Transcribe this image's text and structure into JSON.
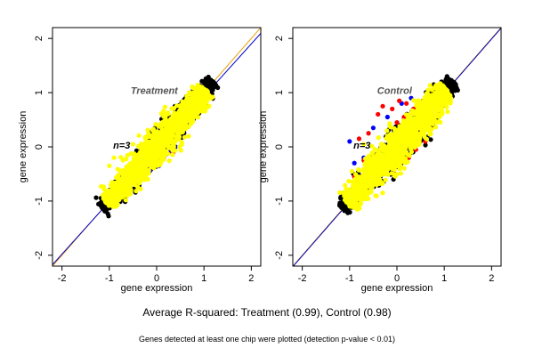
{
  "chart_data": [
    {
      "type": "scatter",
      "panel_title": "Treatment",
      "annotation": "n=3",
      "xlabel": "gene expression",
      "ylabel": "gene expression",
      "xlim": [
        -2.2,
        2.2
      ],
      "ylim": [
        -2.2,
        2.2
      ],
      "xticks": [
        -2,
        -1,
        0,
        1,
        2
      ],
      "yticks": [
        -2,
        -1,
        0,
        1,
        2
      ],
      "reference_lines": [
        {
          "color": "#e8a000",
          "slope": 1.0,
          "intercept": 0.0
        },
        {
          "color": "#0000cc",
          "slope": 0.97,
          "intercept": -0.04
        }
      ],
      "series": [
        {
          "color": "#000000",
          "cloud": {
            "center": [
              0.0,
              0.0
            ],
            "extent": [
              -1.15,
              1.2
            ],
            "spread": 0.16
          }
        },
        {
          "color": "#0000ff",
          "points": [
            [
              0.3,
              -0.05
            ],
            [
              0.4,
              0.0
            ],
            [
              0.25,
              -0.1
            ],
            [
              0.05,
              -0.35
            ],
            [
              -0.1,
              -0.4
            ],
            [
              -0.15,
              -0.45
            ],
            [
              -0.2,
              -0.4
            ],
            [
              -0.3,
              -0.55
            ],
            [
              -0.4,
              -0.62
            ],
            [
              -0.6,
              -0.7
            ],
            [
              -0.7,
              -0.75
            ],
            [
              -0.95,
              -0.92
            ],
            [
              -0.5,
              -0.55
            ],
            [
              0.6,
              0.45
            ],
            [
              0.75,
              0.6
            ]
          ]
        },
        {
          "color": "#ff0000",
          "points": [
            [
              0.35,
              -0.1
            ],
            [
              0.15,
              -0.2
            ],
            [
              -0.1,
              -0.25
            ],
            [
              -0.3,
              -0.5
            ],
            [
              -0.6,
              -0.65
            ],
            [
              0.55,
              0.32
            ],
            [
              0.45,
              0.25
            ]
          ]
        },
        {
          "color": "#ffff00",
          "cloud": {
            "center": [
              0.0,
              0.0
            ],
            "extent": [
              -1.05,
              1.05
            ],
            "spread": 0.2
          },
          "points": [
            [
              -0.9,
              -0.2
            ],
            [
              -1.0,
              -0.35
            ],
            [
              0.2,
              0.15
            ],
            [
              -0.5,
              0.05
            ]
          ]
        }
      ]
    },
    {
      "type": "scatter",
      "panel_title": "Control",
      "annotation": "n=3",
      "xlabel": "gene expression",
      "ylabel": "gene expression",
      "xlim": [
        -2.2,
        2.2
      ],
      "ylim": [
        -2.2,
        2.2
      ],
      "xticks": [
        -2,
        -1,
        0,
        1,
        2
      ],
      "yticks": [
        -2,
        -1,
        0,
        1,
        2
      ],
      "reference_lines": [
        {
          "color": "#e8a000",
          "slope": 1.0,
          "intercept": 0.0
        },
        {
          "color": "#0000cc",
          "slope": 1.0,
          "intercept": -0.01
        }
      ],
      "series": [
        {
          "color": "#000000",
          "cloud": {
            "center": [
              0.0,
              0.0
            ],
            "extent": [
              -1.15,
              1.2
            ],
            "spread": 0.18
          }
        },
        {
          "color": "#0000ff",
          "points": [
            [
              0.1,
              0.8
            ],
            [
              -0.2,
              0.55
            ],
            [
              -0.5,
              0.35
            ],
            [
              -0.7,
              -0.2
            ],
            [
              -0.9,
              -0.3
            ],
            [
              -1.0,
              0.1
            ],
            [
              0.3,
              0.9
            ],
            [
              0.55,
              0.2
            ],
            [
              0.7,
              0.8
            ],
            [
              -0.3,
              -0.1
            ],
            [
              0.9,
              0.95
            ],
            [
              0.2,
              0.4
            ]
          ]
        },
        {
          "color": "#ff0000",
          "points": [
            [
              -0.4,
              0.6
            ],
            [
              -0.3,
              0.75
            ],
            [
              -0.1,
              0.7
            ],
            [
              0.05,
              0.85
            ],
            [
              0.2,
              0.8
            ],
            [
              0.35,
              0.7
            ],
            [
              -0.6,
              0.25
            ],
            [
              -0.8,
              0.15
            ],
            [
              0.5,
              0.25
            ],
            [
              0.45,
              0.1
            ],
            [
              0.4,
              -0.05
            ],
            [
              0.25,
              -0.2
            ],
            [
              -0.15,
              -0.35
            ],
            [
              -0.05,
              -0.5
            ],
            [
              0.7,
              0.3
            ],
            [
              0.85,
              0.6
            ],
            [
              -0.7,
              -0.25
            ],
            [
              0.6,
              0.1
            ],
            [
              0.0,
              0.45
            ],
            [
              -0.9,
              -0.55
            ],
            [
              0.15,
              0.55
            ],
            [
              -0.45,
              -0.55
            ]
          ]
        },
        {
          "color": "#ffff00",
          "cloud": {
            "center": [
              0.0,
              0.0
            ],
            "extent": [
              -1.05,
              1.05
            ],
            "spread": 0.22
          },
          "points": [
            [
              -0.45,
              -0.9
            ],
            [
              -0.3,
              -0.85
            ],
            [
              -0.95,
              -0.45
            ],
            [
              -0.7,
              0.05
            ]
          ]
        }
      ]
    }
  ],
  "caption": {
    "main": "Average R-squared: Treatment (0.99), Control (0.98)",
    "note": "Genes detected at least one chip were plotted (detection p-value < 0.01)"
  }
}
